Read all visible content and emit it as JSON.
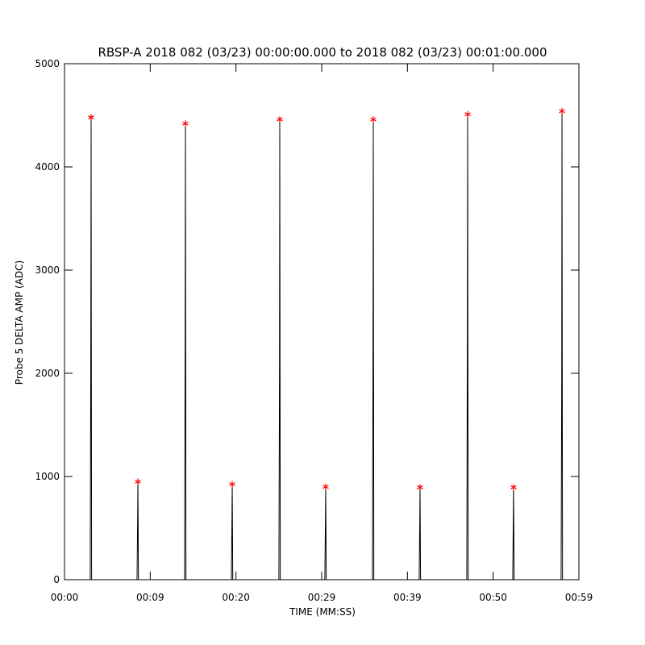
{
  "chart_data": {
    "type": "line",
    "title": "RBSP-A 2018 082 (03/23) 00:00:00.000 to 2018 082 (03/23) 00:01:00.000",
    "xlabel": "TIME (MM:SS)",
    "ylabel": "Probe 5 DELTA AMP (ADC)",
    "xlim": [
      0,
      59
    ],
    "ylim": [
      0,
      5000
    ],
    "xticks": [
      {
        "value": 0,
        "label": "00:00"
      },
      {
        "value": 9.833,
        "label": "00:09"
      },
      {
        "value": 19.667,
        "label": "00:20"
      },
      {
        "value": 29.5,
        "label": "00:29"
      },
      {
        "value": 39.333,
        "label": "00:39"
      },
      {
        "value": 49.167,
        "label": "00:50"
      },
      {
        "value": 59,
        "label": "00:59"
      }
    ],
    "yticks": [
      0,
      1000,
      2000,
      3000,
      4000,
      5000
    ],
    "series": [
      {
        "color": "#000000",
        "x": [
          0,
          2.95,
          3.02,
          3.05,
          3.11,
          8.32,
          8.39,
          8.42,
          8.48,
          13.77,
          13.84,
          13.87,
          13.93,
          19.14,
          19.21,
          19.24,
          19.3,
          24.59,
          24.66,
          24.69,
          24.75,
          29.86,
          29.93,
          29.96,
          30.02,
          35.32,
          35.39,
          35.42,
          35.48,
          40.68,
          40.75,
          40.78,
          40.84,
          46.14,
          46.21,
          46.24,
          46.3,
          51.41,
          51.48,
          51.51,
          51.57,
          56.96,
          57.03,
          57.06,
          57.12,
          59
        ],
        "values": [
          0,
          0,
          2350,
          4480,
          0,
          0,
          620,
          950,
          0,
          0,
          2330,
          4420,
          0,
          0,
          610,
          925,
          0,
          0,
          2050,
          4460,
          0,
          0,
          590,
          900,
          0,
          0,
          2360,
          4460,
          0,
          0,
          580,
          895,
          0,
          0,
          2400,
          4510,
          0,
          0,
          600,
          895,
          0,
          0,
          1980,
          4540,
          0,
          0
        ]
      },
      {
        "color": "#ff0000",
        "marker": "asterisk",
        "x": [
          3.05,
          8.42,
          13.87,
          19.24,
          24.69,
          29.96,
          35.42,
          40.78,
          46.24,
          51.51,
          57.06
        ],
        "values": [
          4480,
          950,
          4420,
          925,
          4460,
          900,
          4460,
          895,
          4510,
          895,
          4540
        ]
      }
    ]
  }
}
